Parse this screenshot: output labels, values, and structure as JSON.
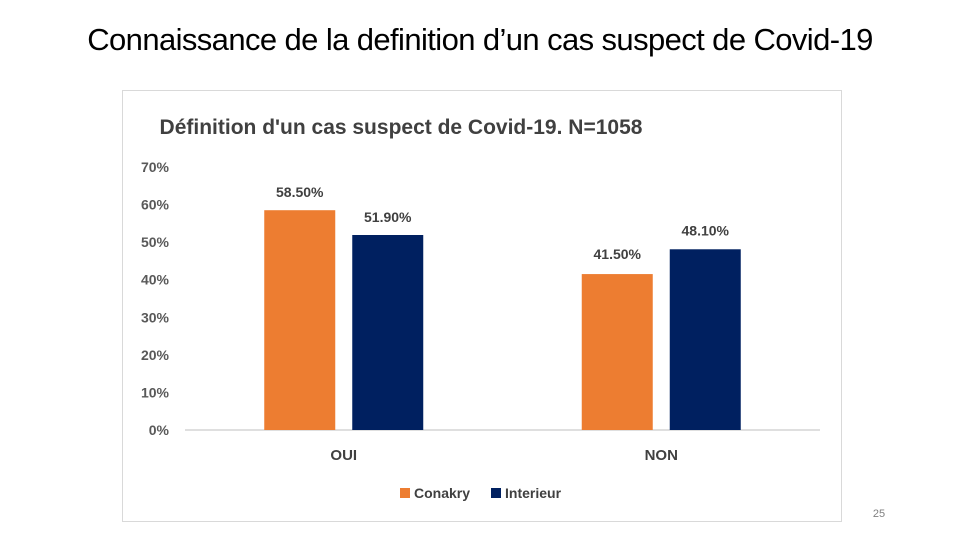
{
  "slide": {
    "title": "Connaissance de la definition d’un cas suspect de Covid-19",
    "page_number": "25"
  },
  "colors": {
    "Conakry": "#ed7d31",
    "Interieur": "#002060",
    "axis": "#bfbfbf"
  },
  "chart_data": {
    "type": "bar",
    "title": "Définition d'un cas suspect de Covid-19. N=1058",
    "categories": [
      "OUI",
      "NON"
    ],
    "series": [
      {
        "name": "Conakry",
        "values": [
          58.5,
          41.5
        ],
        "labels": [
          "58.50%",
          "41.50%"
        ]
      },
      {
        "name": "Interieur",
        "values": [
          51.9,
          48.1
        ],
        "labels": [
          "51.90%",
          "48.10%"
        ]
      }
    ],
    "y_ticks": [
      "0%",
      "10%",
      "20%",
      "30%",
      "40%",
      "50%",
      "60%",
      "70%"
    ],
    "ylim": [
      0,
      70
    ],
    "unit": "%",
    "xlabel": "",
    "ylabel": "",
    "grid": false,
    "legend_position": "bottom"
  }
}
